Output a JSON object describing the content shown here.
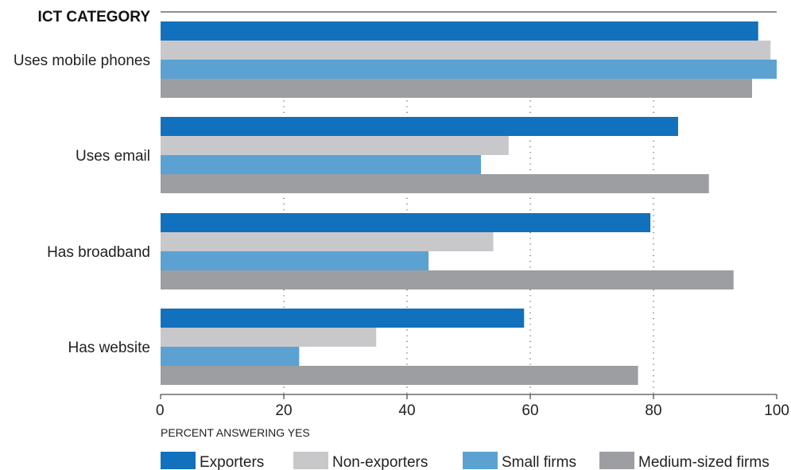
{
  "chart_data": {
    "type": "bar",
    "orientation": "horizontal",
    "header": "ICT CATEGORY",
    "categories": [
      "Uses mobile phones",
      "Uses email",
      "Has broadband",
      "Has website"
    ],
    "series": [
      {
        "name": "Exporters",
        "color": "#1271bc",
        "values": [
          97,
          84,
          79.5,
          59
        ]
      },
      {
        "name": "Non-exporters",
        "color": "#c8c8ca",
        "values": [
          99,
          56.5,
          54,
          35
        ]
      },
      {
        "name": "Small firms",
        "color": "#5ba2d3",
        "values": [
          100,
          52,
          43.5,
          22.5
        ]
      },
      {
        "name": "Medium-sized firms",
        "color": "#9c9ea2",
        "values": [
          96,
          89,
          93,
          77.5
        ]
      }
    ],
    "xlabel": "PERCENT ANSWERING YES",
    "xticks": [
      "0",
      "20",
      "40",
      "60",
      "80",
      "100"
    ],
    "xlim": [
      0,
      100
    ],
    "grid": "vertical dotted",
    "legend_position": "bottom"
  }
}
